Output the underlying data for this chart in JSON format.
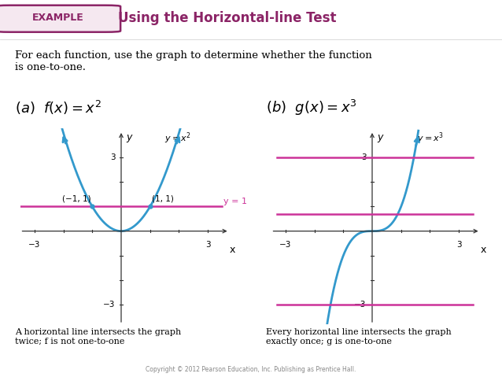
{
  "bg_color": "#ffffff",
  "graph_bg": "#ffffff",
  "example_box_color": "#8b2466",
  "title_text": "Using the Horizontal-line Test",
  "intro_text": "For each function, use the graph to determine whether the function\nis one-to-one.",
  "curve_color": "#3399cc",
  "hline_color": "#cc3399",
  "axis_color": "#333333",
  "xlim": [
    -3.5,
    3.8
  ],
  "ylim": [
    -3.8,
    4.2
  ],
  "hline_y_a": 1.0,
  "hline_y_b_values": [
    -3.0,
    0.7,
    3.0
  ],
  "tick_positions": [
    -3,
    -2,
    -1,
    1,
    2,
    3
  ],
  "caption_a": "A horizontal line intersects the graph\ntwice; f is not one-to-one",
  "caption_b": "Every horizontal line intersects the graph\nexactly once; g is one-to-one",
  "copyright": "Copyright © 2012 Pearson Education, Inc. Publishing as Prentice Hall."
}
